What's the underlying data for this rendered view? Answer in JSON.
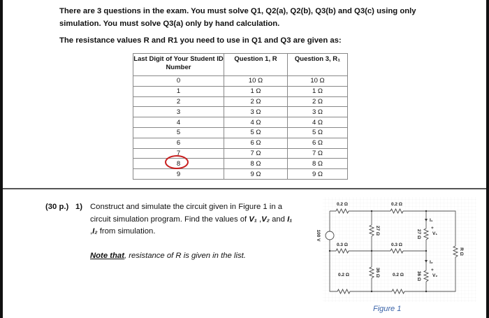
{
  "intro": {
    "line1": "There are 3 questions in the exam. You must solve Q1, Q2(a), Q2(b), Q3(b) and Q3(c) using only",
    "line2": "simulation. You must solve Q3(a) only by hand calculation.",
    "line3": "The resistance values R and R1 you need to use in Q1 and Q3 are given as:"
  },
  "table": {
    "headers": [
      "Last Digit of Your Student ID Number",
      "Question 1, R",
      "Question 3, R₁"
    ],
    "rows": [
      [
        "0",
        "10 Ω",
        "10 Ω"
      ],
      [
        "1",
        "1 Ω",
        "1 Ω"
      ],
      [
        "2",
        "2 Ω",
        "2 Ω"
      ],
      [
        "3",
        "3 Ω",
        "3 Ω"
      ],
      [
        "4",
        "4 Ω",
        "4 Ω"
      ],
      [
        "5",
        "5 Ω",
        "5 Ω"
      ],
      [
        "6",
        "6 Ω",
        "6 Ω"
      ],
      [
        "7",
        "7 Ω",
        "7 Ω"
      ],
      [
        "8",
        "8 Ω",
        "8 Ω"
      ],
      [
        "9",
        "9 Ω",
        "9 Ω"
      ]
    ],
    "highlighted_digit": "8",
    "highlight_color": "#c81e1e"
  },
  "question": {
    "points": "(30 p.)",
    "number": "1)",
    "text1": "Construct and simulate the circuit given in Figure 1 in a",
    "text2a": "circuit simulation program. Find the values of ",
    "v1": "V₁",
    "sep1": " ,",
    "v2": "V₂",
    "and": " and ",
    "i1": "I₁",
    "sep2": ",",
    "i2": "I₂",
    "text3": " from simulation.",
    "note_label": "Note that",
    "note_text": ", resistance of R is given in the list."
  },
  "circuit": {
    "source": "100 V",
    "r_top_left": "0.2 Ω",
    "r_top_right": "0.2 Ω",
    "r_mid_left": "0.3 Ω",
    "r_mid_right": "0.3 Ω",
    "r_bot_left": "0.2 Ω",
    "r_bot_right": "0.2 Ω",
    "r_v_27a": "27 Ω",
    "r_v_36a": "36 Ω",
    "r_v_27b": "27 Ω",
    "r_v_36b": "36 Ω",
    "r_load": "R Ω",
    "i1": "I₁",
    "i2": "I₂",
    "v1": "V₁",
    "v2": "V₂",
    "caption": "Figure 1"
  }
}
